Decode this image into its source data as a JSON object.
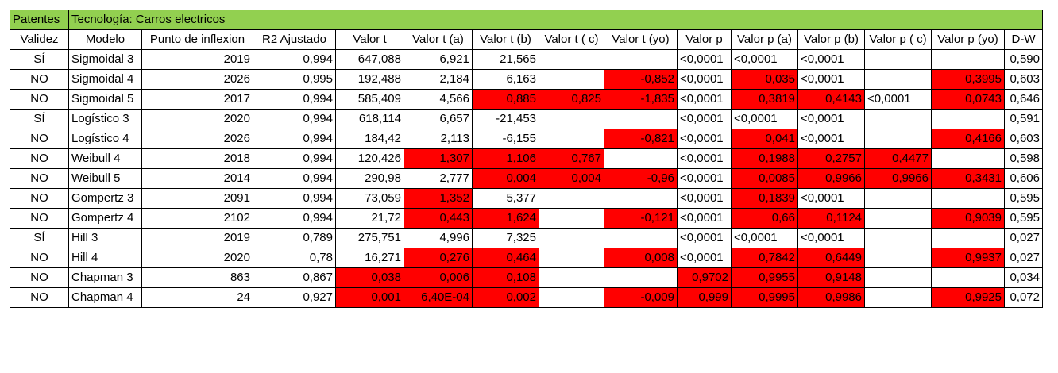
{
  "header": {
    "patentes": "Patentes",
    "tecnologia": "Tecnología: Carros electricos"
  },
  "columns": [
    "Validez",
    "Modelo",
    "Punto de inflexion",
    "R2 Ajustado",
    "Valor t",
    "Valor t (a)",
    "Valor t (b)",
    "Valor t ( c)",
    "Valor t (yo)",
    "Valor p",
    "Valor p (a)",
    "Valor p (b)",
    "Valor p ( c)",
    "Valor p (yo)",
    "D-W"
  ],
  "highlight_color": "#ff0000",
  "header_color": "#92d050",
  "rows": [
    {
      "cells": [
        "SÍ",
        "Sigmoidal 3",
        "2019",
        "0,994",
        "647,088",
        "6,921",
        "21,565",
        "",
        "",
        "<0,0001",
        "<0,0001",
        "<0,0001",
        "",
        "",
        "0,590"
      ],
      "red": []
    },
    {
      "cells": [
        "NO",
        "Sigmoidal 4",
        "2026",
        "0,995",
        "192,488",
        "2,184",
        "6,163",
        "",
        "-0,852",
        "<0,0001",
        "0,035",
        "<0,0001",
        "",
        "0,3995",
        "0,603"
      ],
      "red": [
        8,
        10,
        13
      ]
    },
    {
      "cells": [
        "NO",
        "Sigmoidal 5",
        "2017",
        "0,994",
        "585,409",
        "4,566",
        "0,885",
        "0,825",
        "-1,835",
        "<0,0001",
        "0,3819",
        "0,4143",
        "<0,0001",
        "0,0743",
        "0,646"
      ],
      "red": [
        6,
        7,
        8,
        10,
        11,
        13
      ]
    },
    {
      "cells": [
        "SÍ",
        "Logístico 3",
        "2020",
        "0,994",
        "618,114",
        "6,657",
        "-21,453",
        "",
        "",
        "<0,0001",
        "<0,0001",
        "<0,0001",
        "",
        "",
        "0,591"
      ],
      "red": []
    },
    {
      "cells": [
        "NO",
        "Logístico 4",
        "2026",
        "0,994",
        "184,42",
        "2,113",
        "-6,155",
        "",
        "-0,821",
        "<0,0001",
        "0,041",
        "<0,0001",
        "",
        "0,4166",
        "0,603"
      ],
      "red": [
        8,
        10,
        13
      ]
    },
    {
      "cells": [
        "NO",
        "Weibull 4",
        "2018",
        "0,994",
        "120,426",
        "1,307",
        "1,106",
        "0,767",
        "",
        "<0,0001",
        "0,1988",
        "0,2757",
        "0,4477",
        "",
        "0,598"
      ],
      "red": [
        5,
        6,
        7,
        10,
        11,
        12
      ]
    },
    {
      "cells": [
        "NO",
        "Weibull 5",
        "2014",
        "0,994",
        "290,98",
        "2,777",
        "0,004",
        "0,004",
        "-0,96",
        "<0,0001",
        "0,0085",
        "0,9966",
        "0,9966",
        "0,3431",
        "0,606"
      ],
      "red": [
        6,
        7,
        8,
        10,
        11,
        12,
        13
      ]
    },
    {
      "cells": [
        "NO",
        "Gompertz 3",
        "2091",
        "0,994",
        "73,059",
        "1,352",
        "5,377",
        "",
        "",
        "<0,0001",
        "0,1839",
        "<0,0001",
        "",
        "",
        "0,595"
      ],
      "red": [
        5,
        10
      ]
    },
    {
      "cells": [
        "NO",
        "Gompertz 4",
        "2102",
        "0,994",
        "21,72",
        "0,443",
        "1,624",
        "",
        "-0,121",
        "<0,0001",
        "0,66",
        "0,1124",
        "",
        "0,9039",
        "0,595"
      ],
      "red": [
        5,
        6,
        8,
        10,
        11,
        13
      ]
    },
    {
      "cells": [
        "SÍ",
        "Hill 3",
        "2019",
        "0,789",
        "275,751",
        "4,996",
        "7,325",
        "",
        "",
        "<0,0001",
        "<0,0001",
        "<0,0001",
        "",
        "",
        "0,027"
      ],
      "red": []
    },
    {
      "cells": [
        "NO",
        "Hill 4",
        "2020",
        "0,78",
        "16,271",
        "0,276",
        "0,464",
        "",
        "0,008",
        "<0,0001",
        "0,7842",
        "0,6449",
        "",
        "0,9937",
        "0,027"
      ],
      "red": [
        5,
        6,
        8,
        10,
        11,
        13
      ]
    },
    {
      "cells": [
        "NO",
        "Chapman 3",
        "863",
        "0,867",
        "0,038",
        "0,006",
        "0,108",
        "",
        "",
        "0,9702",
        "0,9955",
        "0,9148",
        "",
        "",
        "0,034"
      ],
      "red": [
        4,
        5,
        6,
        9,
        10,
        11
      ]
    },
    {
      "cells": [
        "NO",
        "Chapman 4",
        "24",
        "0,927",
        "0,001",
        "6,40E-04",
        "0,002",
        "",
        "-0,009",
        "0,999",
        "0,9995",
        "0,9986",
        "",
        "0,9925",
        "0,072"
      ],
      "red": [
        4,
        5,
        6,
        8,
        9,
        10,
        11,
        13
      ]
    }
  ]
}
